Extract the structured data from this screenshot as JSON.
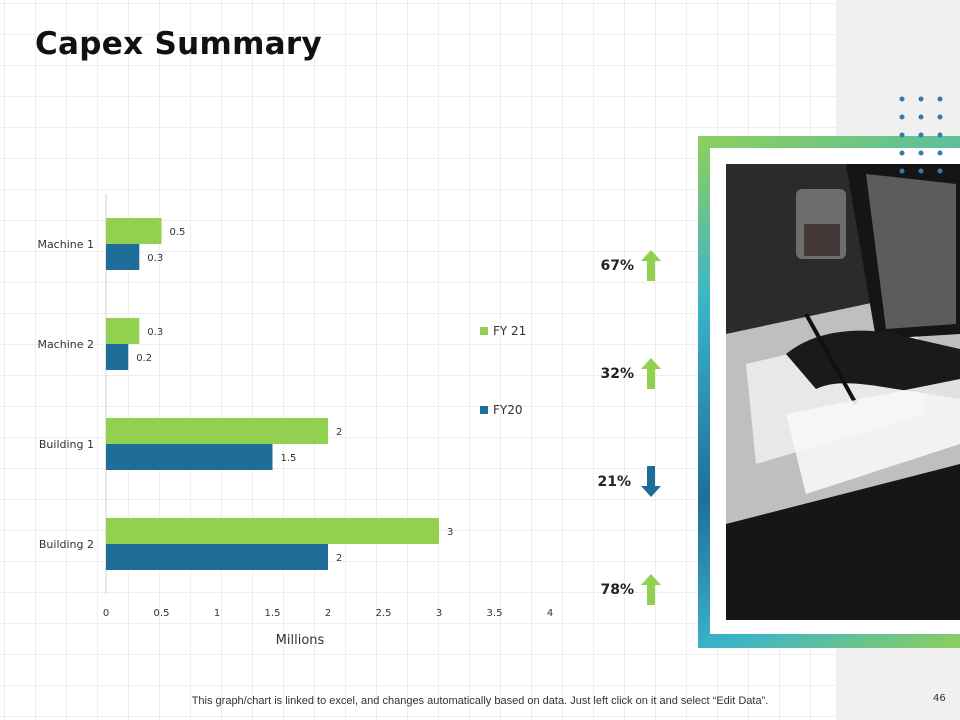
{
  "title": "Capex Summary",
  "chart_data": {
    "type": "bar",
    "orientation": "horizontal",
    "categories": [
      "Machine 1",
      "Machine 2",
      "Building 1",
      "Building 2"
    ],
    "series": [
      {
        "name": "FY 21",
        "values": [
          0.5,
          0.3,
          2,
          3
        ],
        "color": "#92d050"
      },
      {
        "name": "FY20",
        "values": [
          0.3,
          0.2,
          1.5,
          2
        ],
        "color": "#1f6e99"
      }
    ],
    "xlabel": "Millions",
    "ylabel": "",
    "xlim": [
      0,
      4
    ],
    "xticks": [
      "0",
      "0.5",
      "1",
      "1.5",
      "2",
      "2.5",
      "3",
      "3.5",
      "4"
    ],
    "grid": false,
    "legend_position": "right"
  },
  "changes": [
    {
      "text": "67%",
      "direction": "up",
      "color": "#92d050"
    },
    {
      "text": "32%",
      "direction": "up",
      "color": "#92d050"
    },
    {
      "text": "21%",
      "direction": "down",
      "color": "#1f6e99"
    },
    {
      "text": "78%",
      "direction": "up",
      "color": "#92d050"
    }
  ],
  "footer": "This graph/chart is linked to excel, and changes automatically based on data. Just left click on it and select “Edit Data”.",
  "page_number": "46",
  "colors": {
    "accent_green": "#92d050",
    "accent_blue": "#1f6e99",
    "dot_blue": "#2a7fb0"
  }
}
